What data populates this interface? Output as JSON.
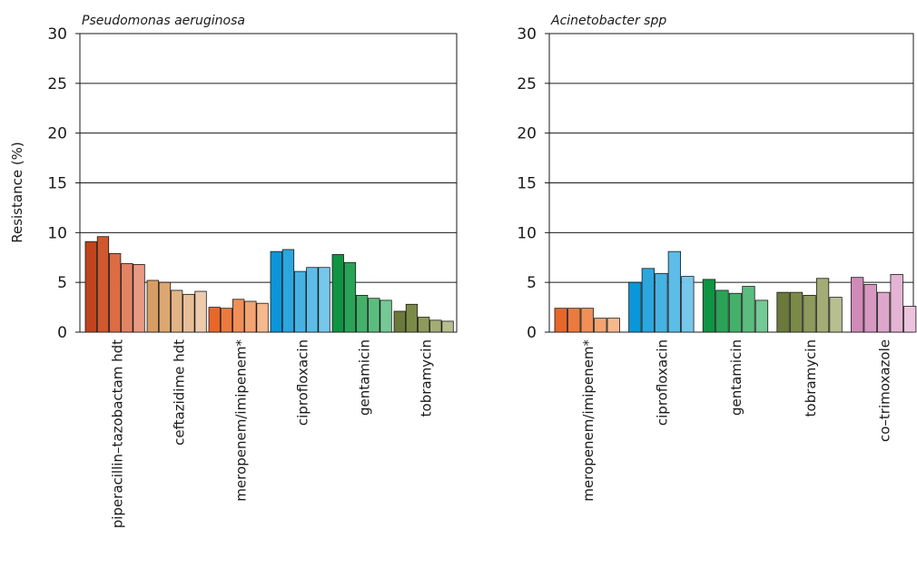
{
  "ylabel": "Resistance (%)",
  "colors": {
    "piperacillin-tazobactam hdt": [
      "#c0441d",
      "#d0582f",
      "#db6c43",
      "#e28364",
      "#e99a82"
    ],
    "ceftazidime hdt": [
      "#d79d63",
      "#dda772",
      "#e2b385",
      "#e7bf98",
      "#ecccac"
    ],
    "meropenem/imipenem*": [
      "#e8662a",
      "#ec7a3f",
      "#f08f57",
      "#f3a471",
      "#f6b98d"
    ],
    "ciprofloxacin": [
      "#0a96d8",
      "#2ca6de",
      "#46b2e4",
      "#5dbce8",
      "#77c7ec"
    ],
    "gentamicin": [
      "#0f9444",
      "#2ba356",
      "#44b06a",
      "#5abd7e",
      "#74c994"
    ],
    "tobramycin": [
      "#6b7a3a",
      "#7c8a48",
      "#8e9a5c",
      "#a2ac74",
      "#b7be90"
    ],
    "co-trimoxazole": [
      "#d08ab8",
      "#d798c2",
      "#dea6cb",
      "#e5b4d4",
      "#ecc3de"
    ]
  },
  "chart_data": [
    {
      "type": "bar",
      "title": "Pseudomonas aeruginosa",
      "ylabel": "Resistance (%)",
      "ylim": [
        0,
        30
      ],
      "yticks": [
        0,
        5,
        10,
        15,
        20,
        25,
        30
      ],
      "grid": true,
      "categories": [
        "piperacillin–tazobactam hdt",
        "ceftazidime hdt",
        "meropenem/imipenem*",
        "ciprofloxacin",
        "gentamicin",
        "tobramycin"
      ],
      "values": [
        [
          9.1,
          9.6,
          7.9,
          6.9,
          6.8
        ],
        [
          5.2,
          5.0,
          4.2,
          3.8,
          4.1
        ],
        [
          2.5,
          2.4,
          3.3,
          3.1,
          2.9
        ],
        [
          8.1,
          8.3,
          6.1,
          6.5,
          6.5
        ],
        [
          7.8,
          7.0,
          3.7,
          3.4,
          3.2
        ],
        [
          2.1,
          2.8,
          1.5,
          1.2,
          1.1
        ]
      ]
    },
    {
      "type": "bar",
      "title": "Acinetobacter spp",
      "ylabel": "",
      "ylim": [
        0,
        30
      ],
      "yticks": [
        0,
        5,
        10,
        15,
        20,
        25,
        30
      ],
      "grid": true,
      "categories": [
        "meropenem/imipenem*",
        "ciprofloxacin",
        "gentamicin",
        "tobramycin",
        "co–trimoxazole"
      ],
      "values": [
        [
          2.4,
          2.4,
          2.4,
          1.4,
          1.4
        ],
        [
          5.0,
          6.4,
          5.9,
          8.1,
          5.6
        ],
        [
          5.3,
          4.2,
          3.9,
          4.6,
          3.2
        ],
        [
          4.0,
          4.0,
          3.7,
          5.4,
          3.5
        ],
        [
          5.5,
          4.8,
          4.0,
          5.8,
          2.6
        ]
      ]
    }
  ]
}
